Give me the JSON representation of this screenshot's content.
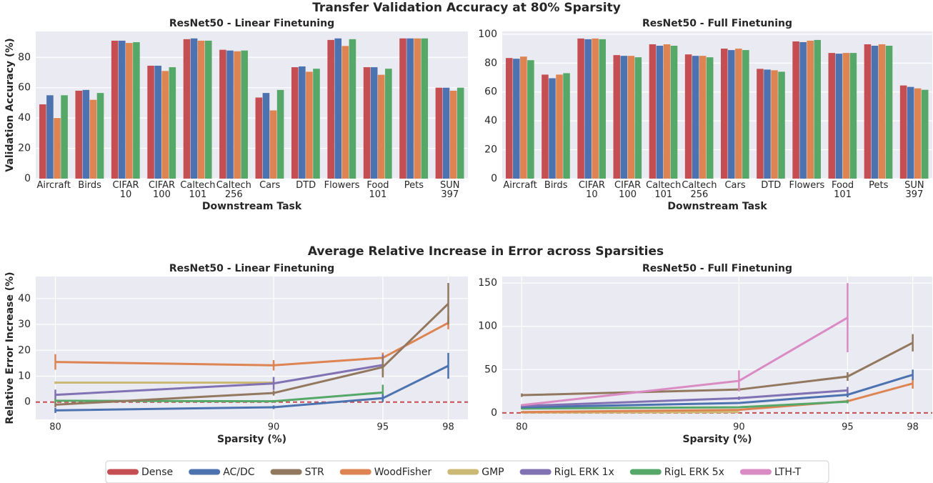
{
  "figure_titles": [
    "Transfer Validation Accuracy at 80% Sparsity",
    "Average Relative Increase in Error across Sparsities"
  ],
  "legend": [
    {
      "name": "Dense",
      "color": "#c44e52"
    },
    {
      "name": "AC/DC",
      "color": "#4c72b0"
    },
    {
      "name": "STR",
      "color": "#937860"
    },
    {
      "name": "WoodFisher",
      "color": "#dd8452"
    },
    {
      "name": "GMP",
      "color": "#ccb974"
    },
    {
      "name": "RigL ERK 1x",
      "color": "#8172b3"
    },
    {
      "name": "RigL ERK 5x",
      "color": "#55a868"
    },
    {
      "name": "LTH-T",
      "color": "#da8bc3"
    }
  ],
  "chart_data": [
    {
      "type": "bar",
      "title": "ResNet50 - Linear Finetuning",
      "x_label": "Downstream Task",
      "y_label": "Validation Accuracy (%)",
      "categories": [
        "Aircraft",
        "Birds",
        "CIFAR\n10",
        "CIFAR\n100",
        "Caltech\n101",
        "Caltech\n256",
        "Cars",
        "DTD",
        "Flowers",
        "Food\n101",
        "Pets",
        "SUN\n397"
      ],
      "ylim": [
        0,
        97.1
      ],
      "yticks": [
        0,
        20,
        40,
        60,
        80
      ],
      "grid": true,
      "series": [
        {
          "name": "Dense",
          "color": "#c44e52",
          "values": [
            49,
            58,
            91,
            74.5,
            92,
            85,
            53.5,
            73.5,
            91.5,
            73.5,
            92.5,
            60
          ]
        },
        {
          "name": "AC/DC",
          "color": "#4c72b0",
          "values": [
            55,
            58.5,
            91,
            74.5,
            92.5,
            84.5,
            56.5,
            74,
            92.5,
            73.5,
            92.5,
            60
          ]
        },
        {
          "name": "WoodFisher",
          "color": "#dd8452",
          "values": [
            40,
            52,
            89.5,
            71,
            91,
            84,
            45,
            70.5,
            87.5,
            68.5,
            92.5,
            58
          ]
        },
        {
          "name": "RigL ERK 5x",
          "color": "#55a868",
          "values": [
            55,
            56.5,
            90,
            73.5,
            91,
            84.5,
            58.5,
            72.5,
            92,
            72.5,
            92.5,
            60
          ]
        }
      ]
    },
    {
      "type": "bar",
      "title": "ResNet50 - Full Finetuning",
      "x_label": "Downstream Task",
      "categories": [
        "Aircraft",
        "Birds",
        "CIFAR\n10",
        "CIFAR\n100",
        "Caltech\n101",
        "Caltech\n256",
        "Cars",
        "DTD",
        "Flowers",
        "Food\n101",
        "Pets",
        "SUN\n397"
      ],
      "ylim": [
        0,
        101.9
      ],
      "yticks": [
        0,
        20,
        40,
        60,
        80,
        100
      ],
      "grid": true,
      "series": [
        {
          "name": "Dense",
          "color": "#c44e52",
          "values": [
            83.5,
            72,
            97,
            85.5,
            93,
            86,
            90,
            76,
            95,
            87,
            93,
            64.5
          ]
        },
        {
          "name": "AC/DC",
          "color": "#4c72b0",
          "values": [
            83,
            69.5,
            96.5,
            85,
            92,
            85,
            89,
            75.5,
            94.5,
            86.5,
            92,
            63.5
          ]
        },
        {
          "name": "WoodFisher",
          "color": "#dd8452",
          "values": [
            84.5,
            72,
            97,
            85,
            93,
            85,
            90,
            75,
            95.5,
            87,
            93,
            62.5
          ]
        },
        {
          "name": "RigL ERK 5x",
          "color": "#55a868",
          "values": [
            82,
            73,
            96.5,
            84,
            92,
            84,
            89,
            74,
            96,
            87,
            92,
            61.5
          ]
        }
      ]
    },
    {
      "type": "line",
      "title": "ResNet50 - Linear Finetuning",
      "x_label": "Sparsity (%)",
      "y_label": "Relative Error Increase (%)",
      "x": [
        80,
        90,
        95,
        98
      ],
      "xlim": [
        79.1,
        98.9
      ],
      "xticks": [
        80,
        90,
        95,
        98
      ],
      "ylim": [
        -6.7,
        48.5
      ],
      "yticks": [
        0,
        10,
        20,
        30,
        40
      ],
      "grid": true,
      "reference_line": {
        "value": 0,
        "color": "#c44e52"
      },
      "series": [
        {
          "name": "WoodFisher",
          "color": "#dd8452",
          "values": [
            15.5,
            14.2,
            17.1,
            30.6
          ],
          "errors": [
            3,
            2,
            2,
            2.5
          ]
        },
        {
          "name": "GMP",
          "color": "#ccb974",
          "values": [
            7.5,
            7.5,
            null,
            null
          ],
          "errors": [
            0.5,
            0.5,
            null,
            null
          ]
        },
        {
          "name": "RigL ERK 1x",
          "color": "#8172b3",
          "values": [
            2.8,
            7.2,
            14.3,
            null
          ],
          "errors": [
            2,
            2.5,
            4,
            null
          ]
        },
        {
          "name": "RigL ERK 5x",
          "color": "#55a868",
          "values": [
            0.5,
            0.3,
            3.7,
            null
          ],
          "errors": [
            0.7,
            0.5,
            3,
            null
          ]
        },
        {
          "name": "STR",
          "color": "#937860",
          "values": [
            -1,
            3.5,
            13.5,
            38
          ],
          "errors": [
            1,
            1,
            4,
            8
          ]
        },
        {
          "name": "AC/DC",
          "color": "#4c72b0",
          "values": [
            -3.2,
            -2,
            1.5,
            14
          ],
          "errors": [
            1,
            0.7,
            1.5,
            5
          ]
        }
      ]
    },
    {
      "type": "line",
      "title": "ResNet50 - Full Finetuning",
      "x_label": "Sparsity (%)",
      "x": [
        80,
        90,
        95,
        98
      ],
      "xlim": [
        79.1,
        98.9
      ],
      "xticks": [
        80,
        90,
        95,
        98
      ],
      "ylim": [
        -7.5,
        157.5
      ],
      "yticks": [
        0,
        50,
        100,
        150
      ],
      "grid": true,
      "reference_line": {
        "value": 0,
        "color": "#c44e52"
      },
      "series": [
        {
          "name": "GMP",
          "color": "#ccb974",
          "values": [
            0.5,
            1,
            null,
            null
          ],
          "errors": [
            0.5,
            0.5,
            null,
            null
          ]
        },
        {
          "name": "WoodFisher",
          "color": "#dd8452",
          "values": [
            1,
            3.5,
            13.5,
            34
          ],
          "errors": [
            1,
            1,
            2,
            6
          ]
        },
        {
          "name": "RigL ERK 5x",
          "color": "#55a868",
          "values": [
            5,
            6.5,
            13,
            null
          ],
          "errors": [
            1,
            1,
            2,
            null
          ]
        },
        {
          "name": "AC/DC",
          "color": "#4c72b0",
          "values": [
            6.5,
            11.5,
            21,
            44
          ],
          "errors": [
            1,
            1,
            3,
            6
          ]
        },
        {
          "name": "RigL ERK 1x",
          "color": "#8172b3",
          "values": [
            8,
            17,
            26,
            null
          ],
          "errors": [
            1,
            2,
            4,
            null
          ]
        },
        {
          "name": "STR",
          "color": "#937860",
          "values": [
            20.5,
            27,
            42,
            81
          ],
          "errors": [
            2,
            2,
            5,
            10
          ]
        },
        {
          "name": "LTH-T",
          "color": "#da8bc3",
          "values": [
            9,
            37,
            110,
            null
          ],
          "errors": [
            1,
            12,
            40,
            null
          ]
        }
      ]
    }
  ]
}
